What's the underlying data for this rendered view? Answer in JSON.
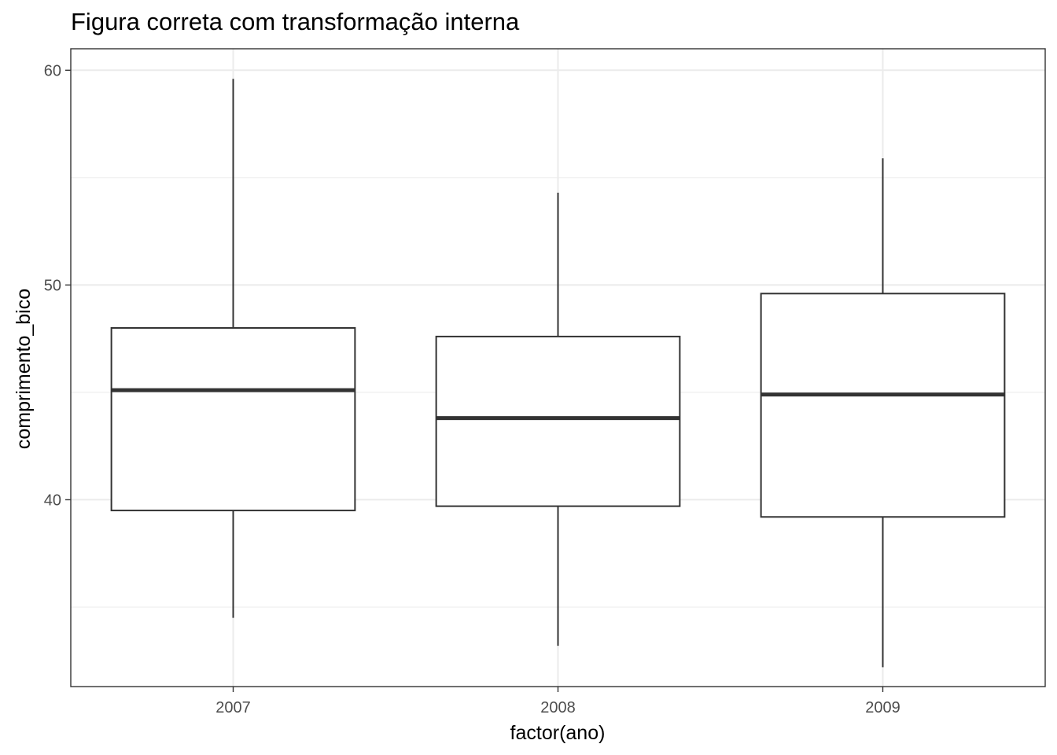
{
  "chart_data": {
    "type": "boxplot",
    "title": "Figura correta com transformação interna",
    "xlabel": "factor(ano)",
    "ylabel": "comprimento_bico",
    "categories": [
      "2007",
      "2008",
      "2009"
    ],
    "boxes": [
      {
        "category": "2007",
        "min": 34.5,
        "q1": 39.5,
        "median": 45.1,
        "q3": 48.0,
        "max": 59.6
      },
      {
        "category": "2008",
        "min": 33.2,
        "q1": 39.7,
        "median": 43.8,
        "q3": 47.6,
        "max": 54.3
      },
      {
        "category": "2009",
        "min": 32.2,
        "q1": 39.2,
        "median": 44.9,
        "q3": 49.6,
        "max": 55.9
      }
    ],
    "yticks": [
      40,
      50,
      60
    ],
    "ylim": [
      31.3,
      61.0
    ],
    "grid": true,
    "theme": "bw",
    "colors": {
      "box_line": "#333333",
      "grid": "#ebebeb",
      "panel_border": "#333333"
    }
  }
}
